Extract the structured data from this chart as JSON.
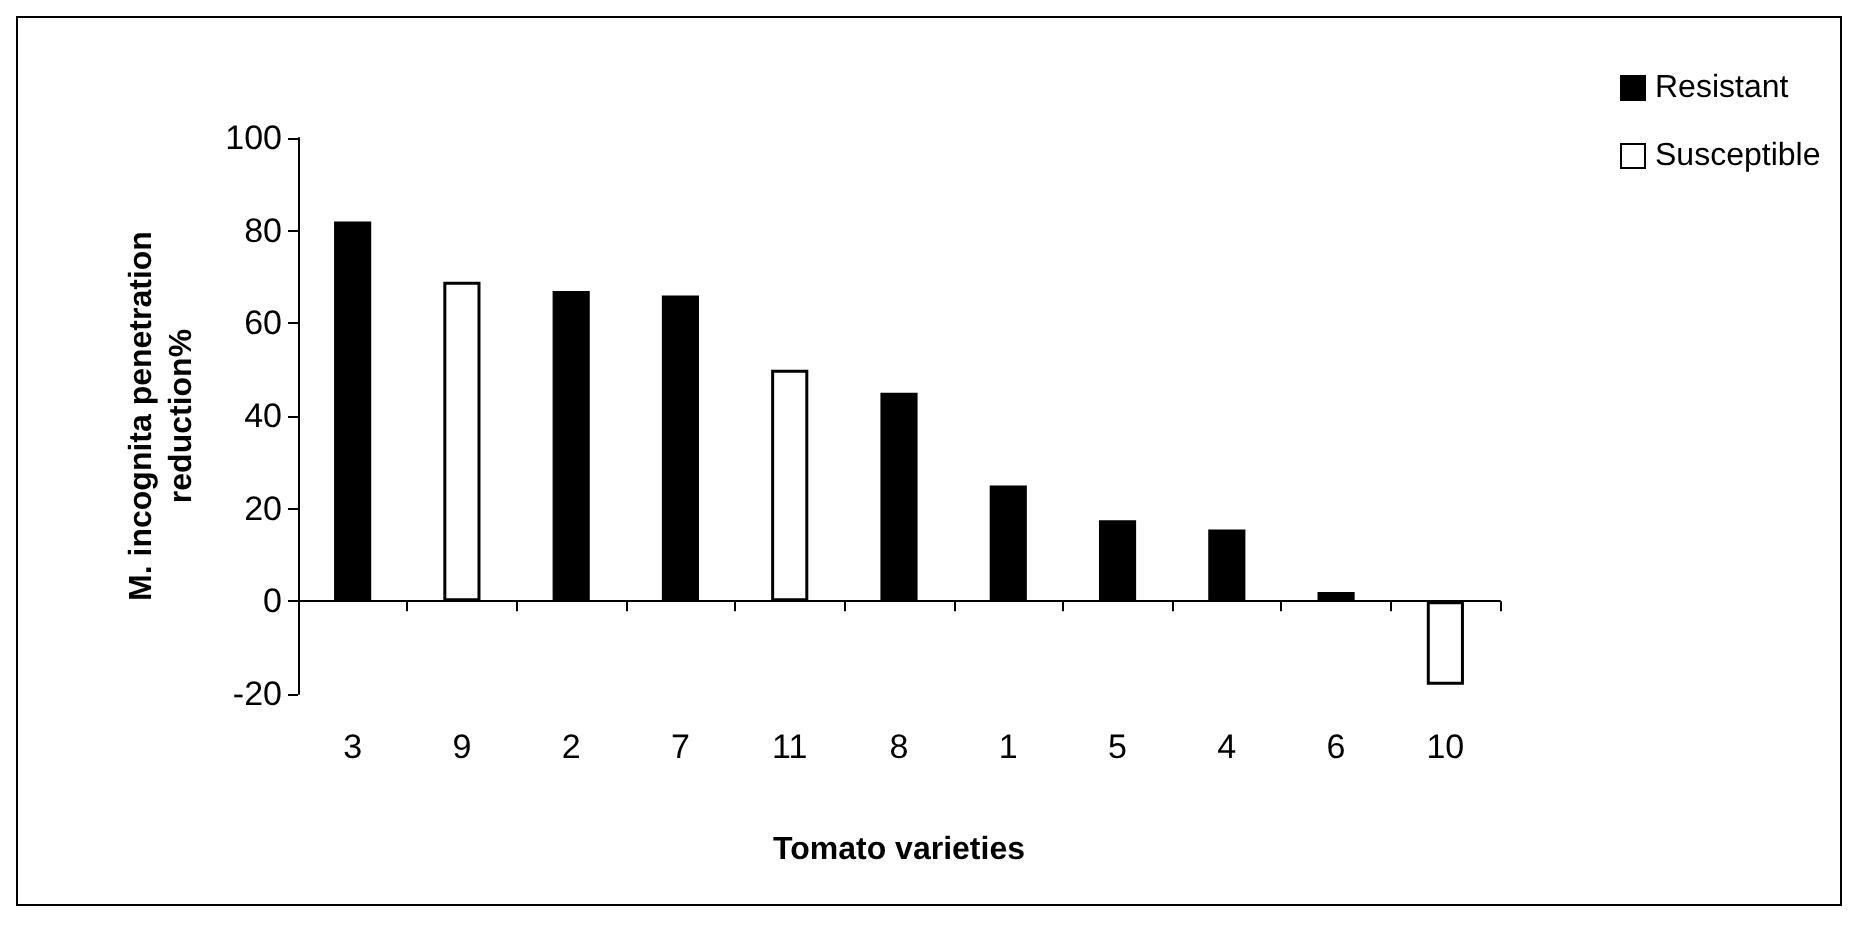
{
  "chart_data": {
    "type": "bar",
    "xlabel": "Tomato varieties",
    "ylabel": "M. incognita penetration\nreduction%",
    "categories": [
      "3",
      "9",
      "2",
      "7",
      "11",
      "8",
      "1",
      "5",
      "4",
      "6",
      "10"
    ],
    "series": [
      {
        "name": "Resistant",
        "color": "#000000",
        "values": [
          82,
          null,
          67,
          66,
          null,
          45,
          25,
          17.5,
          15.5,
          2,
          null
        ]
      },
      {
        "name": "Susceptible",
        "color": "#ffffff",
        "values": [
          null,
          69,
          null,
          null,
          50,
          null,
          null,
          null,
          null,
          null,
          -18
        ]
      }
    ],
    "ylim": [
      -20,
      100
    ],
    "yticks": [
      -20,
      0,
      20,
      40,
      60,
      80,
      100
    ],
    "legend": "top right"
  }
}
